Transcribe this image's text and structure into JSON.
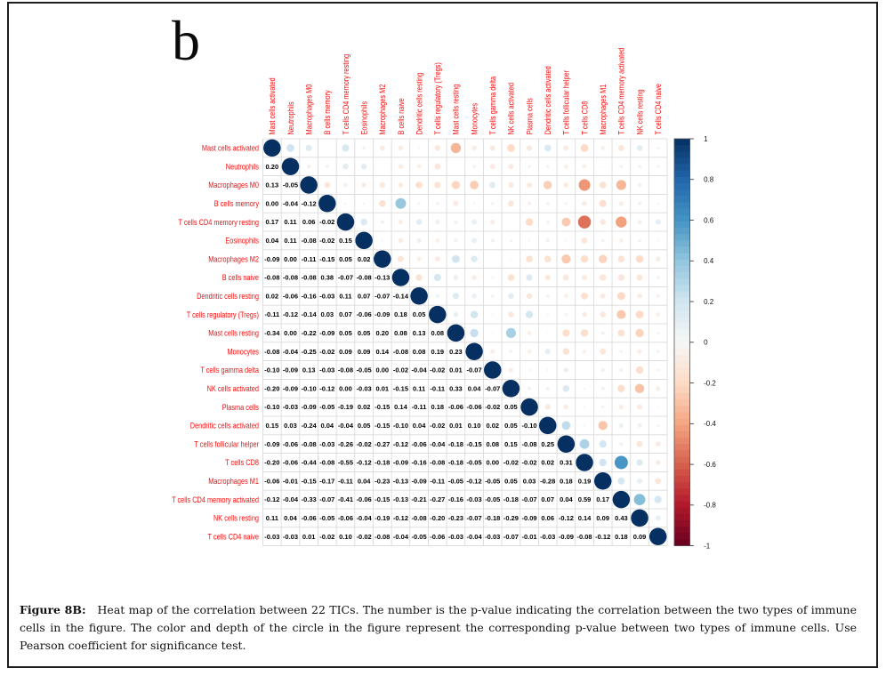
{
  "figure": {
    "panel_label": "b",
    "caption": {
      "label": "Figure 8B:",
      "lines": [
        "Heat map of the correlation between 22 TICs. The number is the p-value indicating the correlation between the two types of immune",
        "cells in the figure. The color and depth of the circle in the figure represent the corresponding p-value between two types of immune cells. Use",
        "Pearson coefficient for significance test."
      ],
      "full_text": "Heat map of the correlation between 22 TICs. The number is the p-value indicating the correlation between the two types of immune cells in the figure. The color and depth of the circle in the figure represent the corresponding p-value between two types of immune cells. Use Pearson coefficient for significance test."
    }
  },
  "chart_data": {
    "type": "heatmap",
    "subtype": "correlation-matrix-corrplot",
    "labels": [
      "Mast cells activated",
      "Neutrophils",
      "Macrophages M0",
      "B cells memory",
      "T cells CD4 memory resting",
      "Eosinophils",
      "Macrophages M2",
      "B cells naive",
      "Dendritic cells resting",
      "T cells regulatory (Tregs)",
      "Mast cells resting",
      "Monocytes",
      "T cells gamma delta",
      "NK cells activated",
      "Plasma cells",
      "Dendritic cells activated",
      "T cells follicular helper",
      "T cells CD8",
      "Macrophages M1",
      "T cells CD4 memory activated",
      "NK cells resting",
      "T cells CD4 naive"
    ],
    "lower_triangle_values": [
      [],
      [
        0.2
      ],
      [
        0.13,
        -0.05
      ],
      [
        0.0,
        -0.04,
        -0.12
      ],
      [
        0.17,
        0.11,
        0.06,
        -0.02
      ],
      [
        0.04,
        0.11,
        -0.08,
        -0.02,
        0.15
      ],
      [
        -0.09,
        0.0,
        -0.11,
        -0.15,
        0.05,
        0.02
      ],
      [
        -0.08,
        -0.08,
        -0.08,
        0.38,
        -0.07,
        -0.08,
        -0.13
      ],
      [
        0.02,
        -0.06,
        -0.16,
        -0.03,
        0.11,
        0.07,
        -0.07,
        -0.14
      ],
      [
        -0.11,
        -0.12,
        -0.14,
        0.03,
        0.07,
        -0.06,
        -0.09,
        0.18,
        0.05
      ],
      [
        -0.34,
        0.0,
        -0.22,
        -0.09,
        0.05,
        0.05,
        0.2,
        0.08,
        0.13,
        0.08
      ],
      [
        -0.08,
        -0.04,
        -0.25,
        -0.02,
        0.09,
        0.09,
        0.14,
        -0.08,
        0.08,
        0.19,
        0.23
      ],
      [
        -0.1,
        -0.09,
        0.13,
        -0.03,
        -0.08,
        -0.05,
        0.0,
        -0.02,
        -0.04,
        -0.02,
        0.01,
        -0.07
      ],
      [
        -0.2,
        -0.09,
        -0.1,
        -0.12,
        0.0,
        -0.03,
        0.01,
        -0.15,
        0.11,
        -0.11,
        0.33,
        0.04,
        -0.07
      ],
      [
        -0.1,
        -0.03,
        -0.09,
        -0.05,
        -0.19,
        0.02,
        -0.15,
        0.14,
        -0.11,
        0.18,
        -0.06,
        -0.06,
        -0.02,
        0.05
      ],
      [
        0.15,
        0.03,
        -0.24,
        0.04,
        -0.04,
        0.05,
        -0.15,
        -0.1,
        0.04,
        -0.02,
        0.01,
        0.1,
        0.02,
        0.05,
        -0.1
      ],
      [
        -0.09,
        -0.06,
        -0.08,
        -0.03,
        -0.26,
        -0.02,
        -0.27,
        -0.12,
        -0.06,
        -0.04,
        -0.18,
        -0.15,
        0.08,
        0.15,
        -0.08,
        0.25
      ],
      [
        -0.2,
        -0.06,
        -0.44,
        -0.08,
        -0.55,
        -0.12,
        -0.18,
        -0.09,
        -0.16,
        -0.08,
        -0.18,
        -0.05,
        0.0,
        -0.02,
        -0.02,
        0.02,
        0.31
      ],
      [
        -0.06,
        -0.01,
        -0.15,
        -0.17,
        -0.11,
        0.04,
        -0.23,
        -0.13,
        -0.09,
        -0.11,
        -0.05,
        -0.12,
        -0.05,
        0.05,
        0.03,
        -0.28,
        0.18,
        0.19
      ],
      [
        -0.12,
        -0.04,
        -0.33,
        -0.07,
        -0.41,
        -0.06,
        -0.15,
        -0.13,
        -0.21,
        -0.27,
        -0.16,
        -0.03,
        -0.05,
        -0.18,
        -0.07,
        0.07,
        0.04,
        0.59,
        0.17
      ],
      [
        0.11,
        0.04,
        -0.06,
        -0.05,
        -0.06,
        -0.04,
        -0.19,
        -0.12,
        -0.08,
        -0.2,
        -0.23,
        -0.07,
        -0.18,
        -0.29,
        -0.09,
        0.06,
        -0.12,
        0.14,
        0.09,
        0.43
      ],
      [
        -0.03,
        -0.03,
        0.01,
        -0.02,
        0.1,
        -0.02,
        -0.08,
        -0.04,
        -0.05,
        -0.06,
        -0.03,
        -0.04,
        -0.03,
        -0.07,
        -0.01,
        -0.03,
        -0.09,
        -0.08,
        -0.12,
        0.18,
        0.09
      ]
    ],
    "diagonal_value": 1,
    "value_range": [
      -1,
      1
    ],
    "grid": true,
    "legend_position": "right",
    "colorbar": {
      "tick_labels": [
        "1",
        "0.8",
        "0.6",
        "0.4",
        "0.2",
        "0",
        "-0.2",
        "-0.4",
        "-0.6",
        "-0.8",
        "-1"
      ],
      "tick_values": [
        1,
        0.8,
        0.6,
        0.4,
        0.2,
        0,
        -0.2,
        -0.4,
        -0.6,
        -0.8,
        -1
      ]
    },
    "colors": {
      "palette_anchors": [
        "#67001F",
        "#B2182B",
        "#D6604D",
        "#F4A582",
        "#FDDBC7",
        "#F7F7F7",
        "#D1E5F0",
        "#92C5DE",
        "#4393C3",
        "#2166AC",
        "#053061"
      ],
      "label_color": "#f50d0d",
      "number_color": "#000000",
      "grid_color": "#d9d9d9",
      "tick_label_color": "#111111"
    }
  }
}
